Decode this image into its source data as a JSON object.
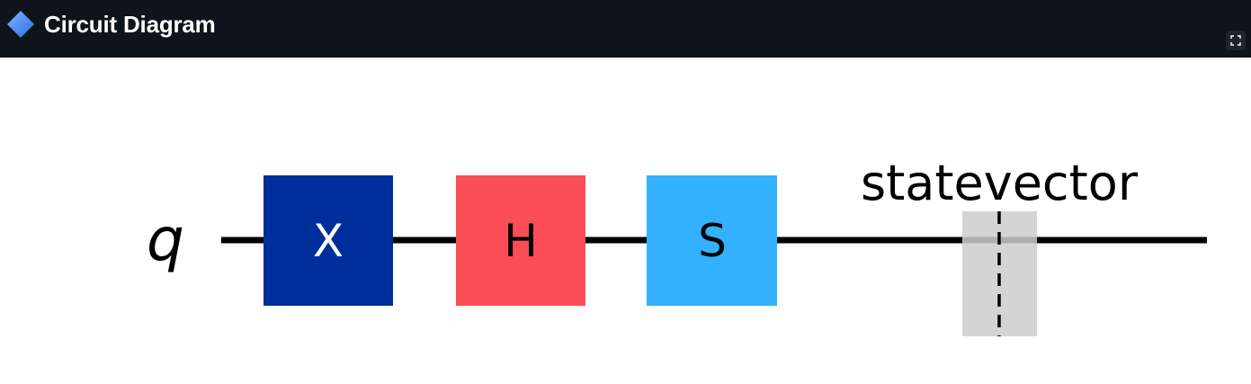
{
  "header": {
    "title": "Circuit Diagram",
    "icon": "blue-diamond-icon",
    "fullscreen_icon": "expand-icon"
  },
  "circuit": {
    "qubit_label": "q",
    "gates": [
      {
        "label": "X",
        "color": "#002d9c",
        "text_color": "#ffffff"
      },
      {
        "label": "H",
        "color": "#fa4d56",
        "text_color": "#000000"
      },
      {
        "label": "S",
        "color": "#33b1ff",
        "text_color": "#000000"
      }
    ],
    "barrier": {
      "label": "statevector",
      "fill": "#cccccc"
    },
    "wire_color": "#000000"
  }
}
